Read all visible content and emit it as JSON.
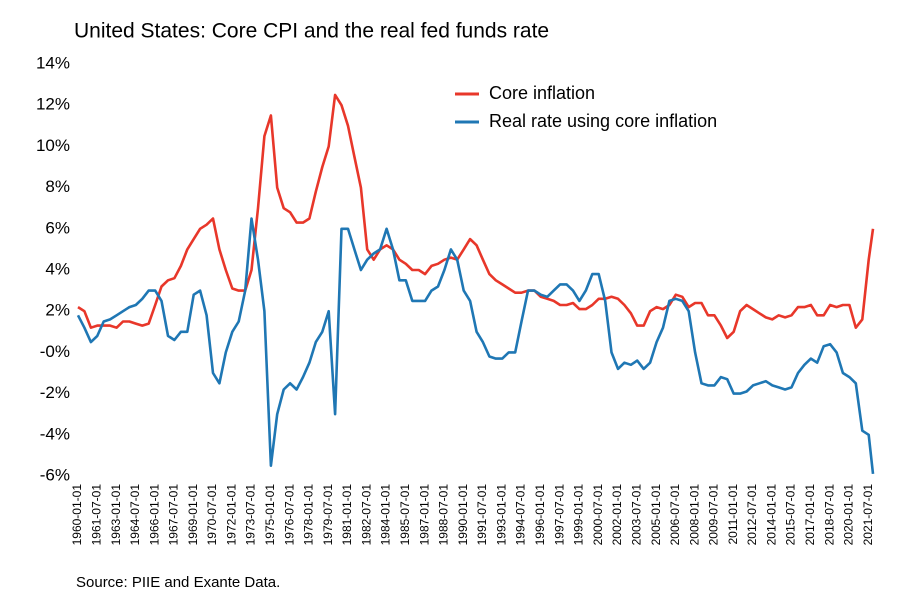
{
  "chart_data": {
    "type": "line",
    "title": "United States: Core CPI and the real fed funds rate",
    "source": "Source: PIIE and Exante Data.",
    "legend": "upper center",
    "x": [
      "1960-01-01",
      "1960-07-01",
      "1961-01-01",
      "1961-07-01",
      "1962-01-01",
      "1962-07-01",
      "1963-01-01",
      "1963-07-01",
      "1964-01-01",
      "1964-07-01",
      "1965-01-01",
      "1965-07-01",
      "1966-01-01",
      "1966-07-01",
      "1967-01-01",
      "1967-07-01",
      "1968-01-01",
      "1968-07-01",
      "1969-01-01",
      "1969-07-01",
      "1970-01-01",
      "1970-07-01",
      "1971-01-01",
      "1971-07-01",
      "1972-01-01",
      "1972-07-01",
      "1973-01-01",
      "1973-07-01",
      "1974-01-01",
      "1974-07-01",
      "1975-01-01",
      "1975-07-01",
      "1976-01-01",
      "1976-07-01",
      "1977-01-01",
      "1977-07-01",
      "1978-01-01",
      "1978-07-01",
      "1979-01-01",
      "1979-07-01",
      "1980-01-01",
      "1980-07-01",
      "1981-01-01",
      "1981-07-01",
      "1982-01-01",
      "1982-07-01",
      "1983-01-01",
      "1983-07-01",
      "1984-01-01",
      "1984-07-01",
      "1985-01-01",
      "1985-07-01",
      "1986-01-01",
      "1986-07-01",
      "1987-01-01",
      "1987-07-01",
      "1988-01-01",
      "1988-07-01",
      "1989-01-01",
      "1989-07-01",
      "1990-01-01",
      "1990-07-01",
      "1991-01-01",
      "1991-07-01",
      "1992-01-01",
      "1992-07-01",
      "1993-01-01",
      "1993-07-01",
      "1994-01-01",
      "1994-07-01",
      "1995-01-01",
      "1995-07-01",
      "1996-01-01",
      "1996-07-01",
      "1997-01-01",
      "1997-07-01",
      "1998-01-01",
      "1998-07-01",
      "1999-01-01",
      "1999-07-01",
      "2000-01-01",
      "2000-07-01",
      "2001-01-01",
      "2001-07-01",
      "2002-01-01",
      "2002-07-01",
      "2003-01-01",
      "2003-07-01",
      "2004-01-01",
      "2004-07-01",
      "2005-01-01",
      "2005-07-01",
      "2006-01-01",
      "2006-07-01",
      "2007-01-01",
      "2007-07-01",
      "2008-01-01",
      "2008-07-01",
      "2009-01-01",
      "2009-07-01",
      "2010-01-01",
      "2010-07-01",
      "2011-01-01",
      "2011-07-01",
      "2012-01-01",
      "2012-07-01",
      "2013-01-01",
      "2013-07-01",
      "2014-01-01",
      "2014-07-01",
      "2015-01-01",
      "2015-07-01",
      "2016-01-01",
      "2016-07-01",
      "2017-01-01",
      "2017-07-01",
      "2018-01-01",
      "2018-07-01",
      "2019-01-01",
      "2019-07-01",
      "2020-01-01",
      "2020-07-01",
      "2021-01-01",
      "2021-07-01",
      "2021-11-01"
    ],
    "series": [
      {
        "name": "Core inflation",
        "color": "#e8372a",
        "values": [
          2.2,
          2.0,
          1.2,
          1.3,
          1.3,
          1.3,
          1.2,
          1.5,
          1.5,
          1.4,
          1.3,
          1.4,
          2.3,
          3.2,
          3.5,
          3.6,
          4.2,
          5.0,
          5.5,
          6.0,
          6.2,
          6.5,
          5.0,
          4.0,
          3.1,
          3.0,
          3.0,
          4.0,
          7.0,
          10.5,
          11.5,
          8.0,
          7.0,
          6.8,
          6.3,
          6.3,
          6.5,
          7.8,
          9.0,
          10.0,
          12.5,
          12.0,
          11.0,
          9.5,
          8.0,
          5.0,
          4.5,
          5.0,
          5.2,
          5.0,
          4.5,
          4.3,
          4.0,
          4.0,
          3.8,
          4.2,
          4.3,
          4.5,
          4.6,
          4.5,
          5.0,
          5.5,
          5.2,
          4.5,
          3.8,
          3.5,
          3.3,
          3.1,
          2.9,
          2.9,
          3.0,
          3.0,
          2.7,
          2.6,
          2.5,
          2.3,
          2.3,
          2.4,
          2.1,
          2.1,
          2.3,
          2.6,
          2.6,
          2.7,
          2.6,
          2.3,
          1.9,
          1.3,
          1.3,
          2.0,
          2.2,
          2.1,
          2.3,
          2.8,
          2.7,
          2.2,
          2.4,
          2.4,
          1.8,
          1.8,
          1.3,
          0.7,
          1.0,
          2.0,
          2.3,
          2.1,
          1.9,
          1.7,
          1.6,
          1.8,
          1.7,
          1.8,
          2.2,
          2.2,
          2.3,
          1.8,
          1.8,
          2.3,
          2.2,
          2.3,
          2.3,
          1.2,
          1.6,
          4.5,
          6.0
        ]
      },
      {
        "name": "Real rate using core inflation",
        "color": "#1f77b4",
        "values": [
          1.8,
          1.2,
          0.5,
          0.8,
          1.5,
          1.6,
          1.8,
          2.0,
          2.2,
          2.3,
          2.6,
          3.0,
          3.0,
          2.5,
          0.8,
          0.6,
          1.0,
          1.0,
          2.8,
          3.0,
          1.8,
          -1.0,
          -1.5,
          0.0,
          1.0,
          1.5,
          3.0,
          6.5,
          4.5,
          2.0,
          -5.5,
          -3.0,
          -1.8,
          -1.5,
          -1.8,
          -1.2,
          -0.5,
          0.5,
          1.0,
          2.0,
          -3.0,
          6.0,
          6.0,
          5.0,
          4.0,
          4.5,
          4.8,
          5.0,
          6.0,
          5.0,
          3.5,
          3.5,
          2.5,
          2.5,
          2.5,
          3.0,
          3.2,
          4.0,
          5.0,
          4.5,
          3.0,
          2.5,
          1.0,
          0.5,
          -0.2,
          -0.3,
          -0.3,
          0.0,
          0.0,
          1.5,
          3.0,
          3.0,
          2.8,
          2.7,
          3.0,
          3.3,
          3.3,
          3.0,
          2.5,
          3.0,
          3.8,
          3.8,
          2.5,
          0.0,
          -0.8,
          -0.5,
          -0.6,
          -0.4,
          -0.8,
          -0.5,
          0.5,
          1.2,
          2.5,
          2.6,
          2.5,
          2.0,
          0.0,
          -1.5,
          -1.6,
          -1.6,
          -1.2,
          -1.3,
          -2.0,
          -2.0,
          -1.9,
          -1.6,
          -1.5,
          -1.4,
          -1.6,
          -1.7,
          -1.8,
          -1.7,
          -1.0,
          -0.6,
          -0.3,
          -0.5,
          0.3,
          0.4,
          0.0,
          -1.0,
          -1.2,
          -1.5,
          -3.8,
          -4.0,
          -5.9
        ]
      }
    ],
    "xlim": [
      "1960-01-01",
      "2021-11-01"
    ],
    "xticks": [
      "1960-01-01",
      "1961-07-01",
      "1963-01-01",
      "1964-07-01",
      "1966-01-01",
      "1967-07-01",
      "1969-01-01",
      "1970-07-01",
      "1972-01-01",
      "1973-07-01",
      "1975-01-01",
      "1976-07-01",
      "1978-01-01",
      "1979-07-01",
      "1981-01-01",
      "1982-07-01",
      "1984-01-01",
      "1985-07-01",
      "1987-01-01",
      "1988-07-01",
      "1990-01-01",
      "1991-07-01",
      "1993-01-01",
      "1994-07-01",
      "1996-01-01",
      "1997-07-01",
      "1999-01-01",
      "2000-07-01",
      "2002-01-01",
      "2003-07-01",
      "2005-01-01",
      "2006-07-01",
      "2008-01-01",
      "2009-07-01",
      "2011-01-01",
      "2012-07-01",
      "2014-01-01",
      "2015-07-01",
      "2017-01-01",
      "2018-07-01",
      "2020-01-01",
      "2021-07-01"
    ],
    "ylim": [
      -6,
      14
    ],
    "yticks": [
      {
        "value": -6,
        "label": "-6%"
      },
      {
        "value": -4,
        "label": "-4%"
      },
      {
        "value": -2,
        "label": "-2%"
      },
      {
        "value": 0,
        "label": "-0%"
      },
      {
        "value": 2,
        "label": "2%"
      },
      {
        "value": 4,
        "label": "4%"
      },
      {
        "value": 6,
        "label": "6%"
      },
      {
        "value": 8,
        "label": "8%"
      },
      {
        "value": 10,
        "label": "10%"
      },
      {
        "value": 12,
        "label": "12%"
      },
      {
        "value": 14,
        "label": "14%"
      }
    ],
    "grid": false
  }
}
